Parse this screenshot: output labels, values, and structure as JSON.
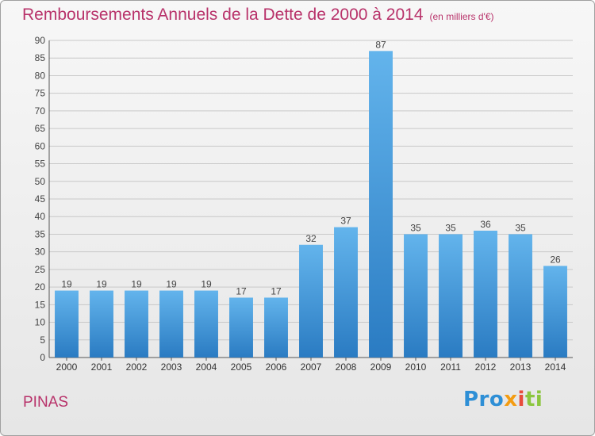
{
  "header": {
    "title": "Remboursements Annuels de la Dette de 2000 à 2014",
    "unit": "(en milliers d'€)"
  },
  "footer": {
    "location": "PINAS",
    "logo": {
      "p1": "Pro",
      "p2": "x",
      "p3": "i",
      "p4": "ti"
    }
  },
  "colors": {
    "title": "#b8326a",
    "bar_top": "#63b4ec",
    "bar_bottom": "#2a7bc2",
    "grid": "#c8c8c8"
  },
  "chart_data": {
    "type": "bar",
    "title": "Remboursements Annuels de la Dette de 2000 à 2014",
    "subtitle": "(en milliers d'€)",
    "xlabel": "",
    "ylabel": "",
    "categories": [
      "2000",
      "2001",
      "2002",
      "2003",
      "2004",
      "2005",
      "2006",
      "2007",
      "2008",
      "2009",
      "2010",
      "2011",
      "2012",
      "2013",
      "2014"
    ],
    "values": [
      19,
      19,
      19,
      19,
      19,
      17,
      17,
      32,
      37,
      87,
      35,
      35,
      36,
      35,
      26
    ],
    "ylim": [
      0,
      90
    ],
    "yticks": [
      0,
      5,
      10,
      15,
      20,
      25,
      30,
      35,
      40,
      45,
      50,
      55,
      60,
      65,
      70,
      75,
      80,
      85,
      90
    ],
    "grid": true,
    "data_labels": true,
    "legend": "none"
  }
}
